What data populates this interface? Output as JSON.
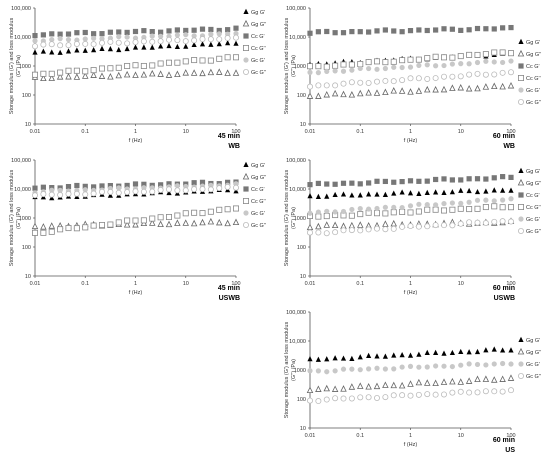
{
  "chart_data": [
    {
      "type": "scatter",
      "xlabel": "f (Hz)",
      "ylabel_line1": "Storage modulus (G') and loss modulus",
      "ylabel_line2": "(G'') (Pa)",
      "ylim": [
        10,
        100000
      ],
      "xlim": [
        0.01,
        100
      ],
      "log_x": true,
      "log_y": true,
      "caption_time": "45 min",
      "caption_group": "WB",
      "yticks": [
        "10",
        "100",
        "1000",
        "10,000",
        "100,000"
      ],
      "xticks": [
        "0.01",
        "0.1",
        "1",
        "10",
        "100"
      ],
      "legend": [
        "Gg G'",
        "Gg G''",
        "Cc G'",
        "Cc G''",
        "Gc G'",
        "Gc G''"
      ],
      "series": [
        {
          "name": "Gg G'",
          "marker": "triangle-filled",
          "color": "#000000",
          "start": 2800,
          "end": 6000
        },
        {
          "name": "Gg G''",
          "marker": "triangle-open",
          "color": "#666666",
          "start": 380,
          "end": 600
        },
        {
          "name": "Cc G'",
          "marker": "square-filled",
          "color": "#777777",
          "start": 12000,
          "end": 19000
        },
        {
          "name": "Cc G''",
          "marker": "square-open",
          "color": "#888888",
          "start": 500,
          "end": 2000
        },
        {
          "name": "Gc G'",
          "marker": "circle-filled",
          "color": "#c8c8c8",
          "start": 7500,
          "end": 13000
        },
        {
          "name": "Gc G''",
          "marker": "circle-open",
          "color": "#bbbbbb",
          "start": 5000,
          "end": 9000
        }
      ]
    },
    {
      "type": "scatter",
      "xlabel": "f (Hz)",
      "ylabel_line1": "Storage modulus (G') and loss modulus",
      "ylabel_line2": "(G'') (Pa)",
      "ylim": [
        10,
        100000
      ],
      "xlim": [
        0.01,
        100
      ],
      "log_x": true,
      "log_y": true,
      "caption_time": "60 min",
      "caption_group": "WB",
      "yticks": [
        "10",
        "100",
        "1000",
        "10,000",
        "100,000"
      ],
      "xticks": [
        "0.01",
        "0.1",
        "1",
        "10",
        "100"
      ],
      "legend": [
        "Gg G'",
        "Gg G''",
        "Cc G'",
        "Cc G''",
        "Gc G'",
        "Gc G''"
      ],
      "series": [
        {
          "name": "Gg G'",
          "marker": "triangle-filled",
          "color": "#000000",
          "start": 1100,
          "end": 2600
        },
        {
          "name": "Gg G''",
          "marker": "triangle-open",
          "color": "#666666",
          "start": 90,
          "end": 200
        },
        {
          "name": "Cc G'",
          "marker": "square-filled",
          "color": "#777777",
          "start": 14000,
          "end": 20000
        },
        {
          "name": "Cc G''",
          "marker": "square-open",
          "color": "#888888",
          "start": 900,
          "end": 3000
        },
        {
          "name": "Gc G'",
          "marker": "circle-filled",
          "color": "#c8c8c8",
          "start": 600,
          "end": 1500
        },
        {
          "name": "Gc G''",
          "marker": "circle-open",
          "color": "#bbbbbb",
          "start": 200,
          "end": 600
        }
      ]
    },
    {
      "type": "scatter",
      "xlabel": "f (Hz)",
      "ylabel_line1": "Storage modulus (G') and loss modulus",
      "ylabel_line2": "(G'') (Pa)",
      "ylim": [
        10,
        100000
      ],
      "xlim": [
        0.01,
        100
      ],
      "log_x": true,
      "log_y": true,
      "caption_time": "45 min",
      "caption_group": "USWB",
      "yticks": [
        "10",
        "100",
        "1000",
        "10,000",
        "100,000"
      ],
      "xticks": [
        "0.01",
        "0.1",
        "1",
        "10",
        "100"
      ],
      "legend": [
        "Gg G'",
        "Gg G''",
        "Cc G'",
        "Cc G''",
        "Gc G'",
        "Gc G''"
      ],
      "series": [
        {
          "name": "Gg G'",
          "marker": "triangle-filled",
          "color": "#000000",
          "start": 4800,
          "end": 9000
        },
        {
          "name": "Gg G''",
          "marker": "triangle-open",
          "color": "#666666",
          "start": 500,
          "end": 700
        },
        {
          "name": "Cc G'",
          "marker": "square-filled",
          "color": "#777777",
          "start": 11000,
          "end": 17000
        },
        {
          "name": "Cc G''",
          "marker": "square-open",
          "color": "#888888",
          "start": 300,
          "end": 2200
        },
        {
          "name": "Gc G'",
          "marker": "circle-filled",
          "color": "#c8c8c8",
          "start": 8000,
          "end": 14000
        },
        {
          "name": "Gc G''",
          "marker": "circle-open",
          "color": "#bbbbbb",
          "start": 6000,
          "end": 11000
        }
      ]
    },
    {
      "type": "scatter",
      "xlabel": "f (Hz)",
      "ylabel_line1": "Storage modulus (G') and loss modulus",
      "ylabel_line2": "(G'') (Pa)",
      "ylim": [
        10,
        100000
      ],
      "xlim": [
        0.01,
        100
      ],
      "log_x": true,
      "log_y": true,
      "caption_time": "60 min",
      "caption_group": "USWB",
      "yticks": [
        "10",
        "100",
        "1000",
        "10,000",
        "100,000"
      ],
      "xticks": [
        "0.01",
        "0.1",
        "1",
        "10",
        "100"
      ],
      "legend": [
        "Gg G'",
        "Gg G''",
        "Cc G'",
        "Cc G''",
        "Gc G'",
        "Gc G''"
      ],
      "series": [
        {
          "name": "Gg G'",
          "marker": "triangle-filled",
          "color": "#000000",
          "start": 5500,
          "end": 9000
        },
        {
          "name": "Gg G''",
          "marker": "triangle-open",
          "color": "#666666",
          "start": 500,
          "end": 700
        },
        {
          "name": "Cc G'",
          "marker": "square-filled",
          "color": "#777777",
          "start": 14000,
          "end": 25000
        },
        {
          "name": "Cc G''",
          "marker": "square-open",
          "color": "#888888",
          "start": 1100,
          "end": 2500
        },
        {
          "name": "Gc G'",
          "marker": "circle-filled",
          "color": "#c8c8c8",
          "start": 1500,
          "end": 4500
        },
        {
          "name": "Gc G''",
          "marker": "circle-open",
          "color": "#bbbbbb",
          "start": 300,
          "end": 800
        }
      ]
    },
    {
      "type": "scatter",
      "xlabel": "f (Hz)",
      "ylabel_line1": "Storage modulus (G') and loss modulus",
      "ylabel_line2": "(G'') (Pa)",
      "ylim": [
        10,
        100000
      ],
      "xlim": [
        0.01,
        100
      ],
      "log_x": true,
      "log_y": true,
      "caption_time": "60 min",
      "caption_group": "US",
      "yticks": [
        "10",
        "100",
        "1000",
        "10,000",
        "100,000"
      ],
      "xticks": [
        "0.01",
        "0.1",
        "1",
        "10",
        "100"
      ],
      "legend": [
        "Gg G'",
        "Gg G''",
        "Gc G'",
        "Gc G''"
      ],
      "series": [
        {
          "name": "Gg G'",
          "marker": "triangle-filled",
          "color": "#000000",
          "start": 2200,
          "end": 5000
        },
        {
          "name": "Gg G''",
          "marker": "triangle-open",
          "color": "#666666",
          "start": 200,
          "end": 500
        },
        {
          "name": "Gc G'",
          "marker": "circle-filled",
          "color": "#c8c8c8",
          "start": 900,
          "end": 1700
        },
        {
          "name": "Gc G''",
          "marker": "circle-open",
          "color": "#bbbbbb",
          "start": 90,
          "end": 200
        }
      ]
    }
  ]
}
